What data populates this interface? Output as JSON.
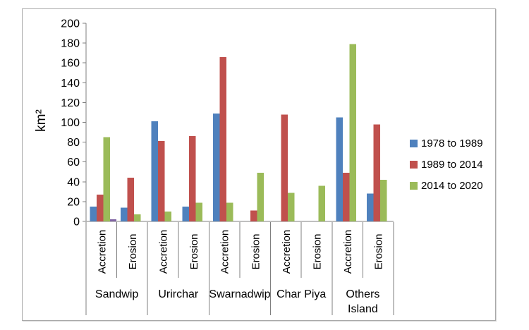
{
  "chart_data": {
    "type": "bar",
    "title": "",
    "xlabel": "",
    "ylabel": "km²",
    "ylim": [
      0,
      200
    ],
    "ytick_step": 20,
    "grid": false,
    "legend_position": "right",
    "subcategories": [
      "Accretion",
      "Erosion"
    ],
    "group_labels": [
      [
        "Sandwip"
      ],
      [
        "Urirchar"
      ],
      [
        "Swarnadwip"
      ],
      [
        "Char Piya"
      ],
      [
        "Others",
        "Island"
      ]
    ],
    "categories": [
      "Sandwip Accretion",
      "Sandwip Erosion",
      "Urirchar Accretion",
      "Urirchar Erosion",
      "Swarnadwip Accretion",
      "Swarnadwip Erosion",
      "Char Piya Accretion",
      "Char Piya Erosion",
      "Others Island Accretion",
      "Others Island Erosion"
    ],
    "series": [
      {
        "name": "1978 to 1989",
        "color": "#4f81bd",
        "values": [
          15,
          14,
          101,
          15,
          109,
          0,
          0,
          0,
          105,
          28
        ]
      },
      {
        "name": "1989 to 2014",
        "color": "#c0504d",
        "values": [
          27,
          44,
          81,
          86,
          166,
          11,
          108,
          0,
          49,
          98
        ]
      },
      {
        "name": "2014 to 2020",
        "color": "#9bbb59",
        "values": [
          85,
          7,
          10,
          19,
          19,
          49,
          29,
          36,
          179,
          42
        ]
      }
    ],
    "unlabeled_extra_bar": {
      "category_index": 0,
      "color": "#8064a2",
      "value": 2
    }
  },
  "style": {
    "axis_color": "#7f7f7f",
    "text_color": "#000000",
    "border_color": "#a8a8a8",
    "background": "#ffffff"
  }
}
